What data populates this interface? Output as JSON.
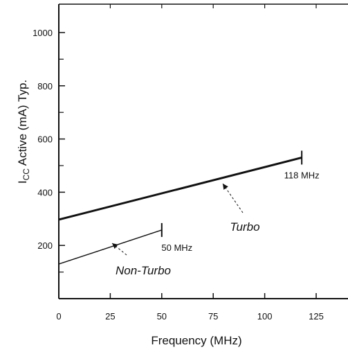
{
  "chart_data": {
    "type": "line",
    "xlabel": "Frequency (MHz)",
    "ylabel_main": "I",
    "ylabel_sub": "CC",
    "ylabel_rest": " Active (mA) Typ.",
    "xlim": [
      0,
      150
    ],
    "ylim": [
      0,
      1100
    ],
    "x_ticks": [
      0,
      25,
      50,
      75,
      100,
      125
    ],
    "y_tick_labels": [
      200,
      400,
      600,
      800,
      1000
    ],
    "y_minor_ticks": [
      100,
      300,
      500,
      700,
      900
    ],
    "grid": false,
    "series": [
      {
        "name": "Turbo",
        "x": [
          0,
          118
        ],
        "y": [
          297,
          530
        ],
        "stroke": "#111111",
        "endpoint_label": "118 MHz"
      },
      {
        "name": "Non-Turbo",
        "x": [
          0,
          50
        ],
        "y": [
          130,
          258
        ],
        "stroke": "#111111",
        "endpoint_label": "50 MHz"
      }
    ]
  }
}
